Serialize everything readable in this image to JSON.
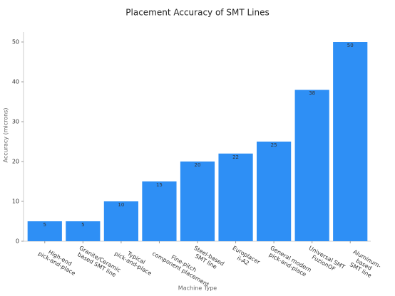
{
  "chart_data": {
    "type": "bar",
    "title": "Placement Accuracy of SMT Lines",
    "x_label": "Machine Type",
    "y_label": "Accuracy (microns)",
    "categories": [
      "High-end\npick-and-place",
      "Granite/Ceramic\nbased SMT line",
      "Typical\npick-and-place",
      "Fine-pitch\ncomponent placement",
      "Steel-based\nSMT line",
      "Europlacer\nii-A2",
      "General modern\npick-and-place",
      "Universal SMT\nFuzionOF",
      "Aluminum-based\nSMT line"
    ],
    "values": [
      5,
      5,
      10,
      15,
      20,
      22,
      25,
      38,
      50
    ],
    "color": "#2e8ff5",
    "ylim": [
      0,
      52.5
    ],
    "yticks": [
      0,
      10,
      20,
      30,
      40,
      50
    ],
    "grid": false
  }
}
